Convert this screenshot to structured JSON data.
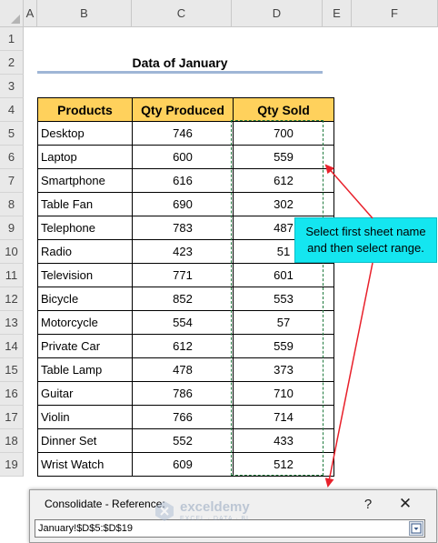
{
  "columns": [
    "A",
    "B",
    "C",
    "D",
    "E",
    "F"
  ],
  "rows": [
    "1",
    "2",
    "3",
    "4",
    "5",
    "6",
    "7",
    "8",
    "9",
    "10",
    "11",
    "12",
    "13",
    "14",
    "15",
    "16",
    "17",
    "18",
    "19"
  ],
  "title": "Data of January",
  "headers": [
    "Products",
    "Qty Produced",
    "Qty Sold"
  ],
  "table": [
    {
      "product": "Desktop",
      "produced": "746",
      "sold": "700"
    },
    {
      "product": "Laptop",
      "produced": "600",
      "sold": "559"
    },
    {
      "product": "Smartphone",
      "produced": "616",
      "sold": "612"
    },
    {
      "product": "Table Fan",
      "produced": "690",
      "sold": "302"
    },
    {
      "product": "Telephone",
      "produced": "783",
      "sold": "487"
    },
    {
      "product": "Radio",
      "produced": "423",
      "sold": "51"
    },
    {
      "product": "Television",
      "produced": "771",
      "sold": "601"
    },
    {
      "product": "Bicycle",
      "produced": "852",
      "sold": "553"
    },
    {
      "product": "Motorcycle",
      "produced": "554",
      "sold": "57"
    },
    {
      "product": "Private Car",
      "produced": "612",
      "sold": "559"
    },
    {
      "product": "Table Lamp",
      "produced": "478",
      "sold": "373"
    },
    {
      "product": "Guitar",
      "produced": "786",
      "sold": "710"
    },
    {
      "product": "Violin",
      "produced": "766",
      "sold": "714"
    },
    {
      "product": "Dinner Set",
      "produced": "552",
      "sold": "433"
    },
    {
      "product": "Wrist Watch",
      "produced": "609",
      "sold": "512"
    }
  ],
  "callout": "Select first sheet name and then select range.",
  "dialog": {
    "title": "Consolidate - Reference:",
    "help": "?",
    "close": "✕",
    "reference_value": "January!$D$5:$D$19"
  },
  "watermark": {
    "name": "exceldemy",
    "tagline": "EXCEL · DATA · BI"
  },
  "colors": {
    "header_fill": "#ffd15c",
    "callout_fill": "#14e6f0",
    "arrow": "#e8212b",
    "marquee": "#1f7a3d"
  }
}
